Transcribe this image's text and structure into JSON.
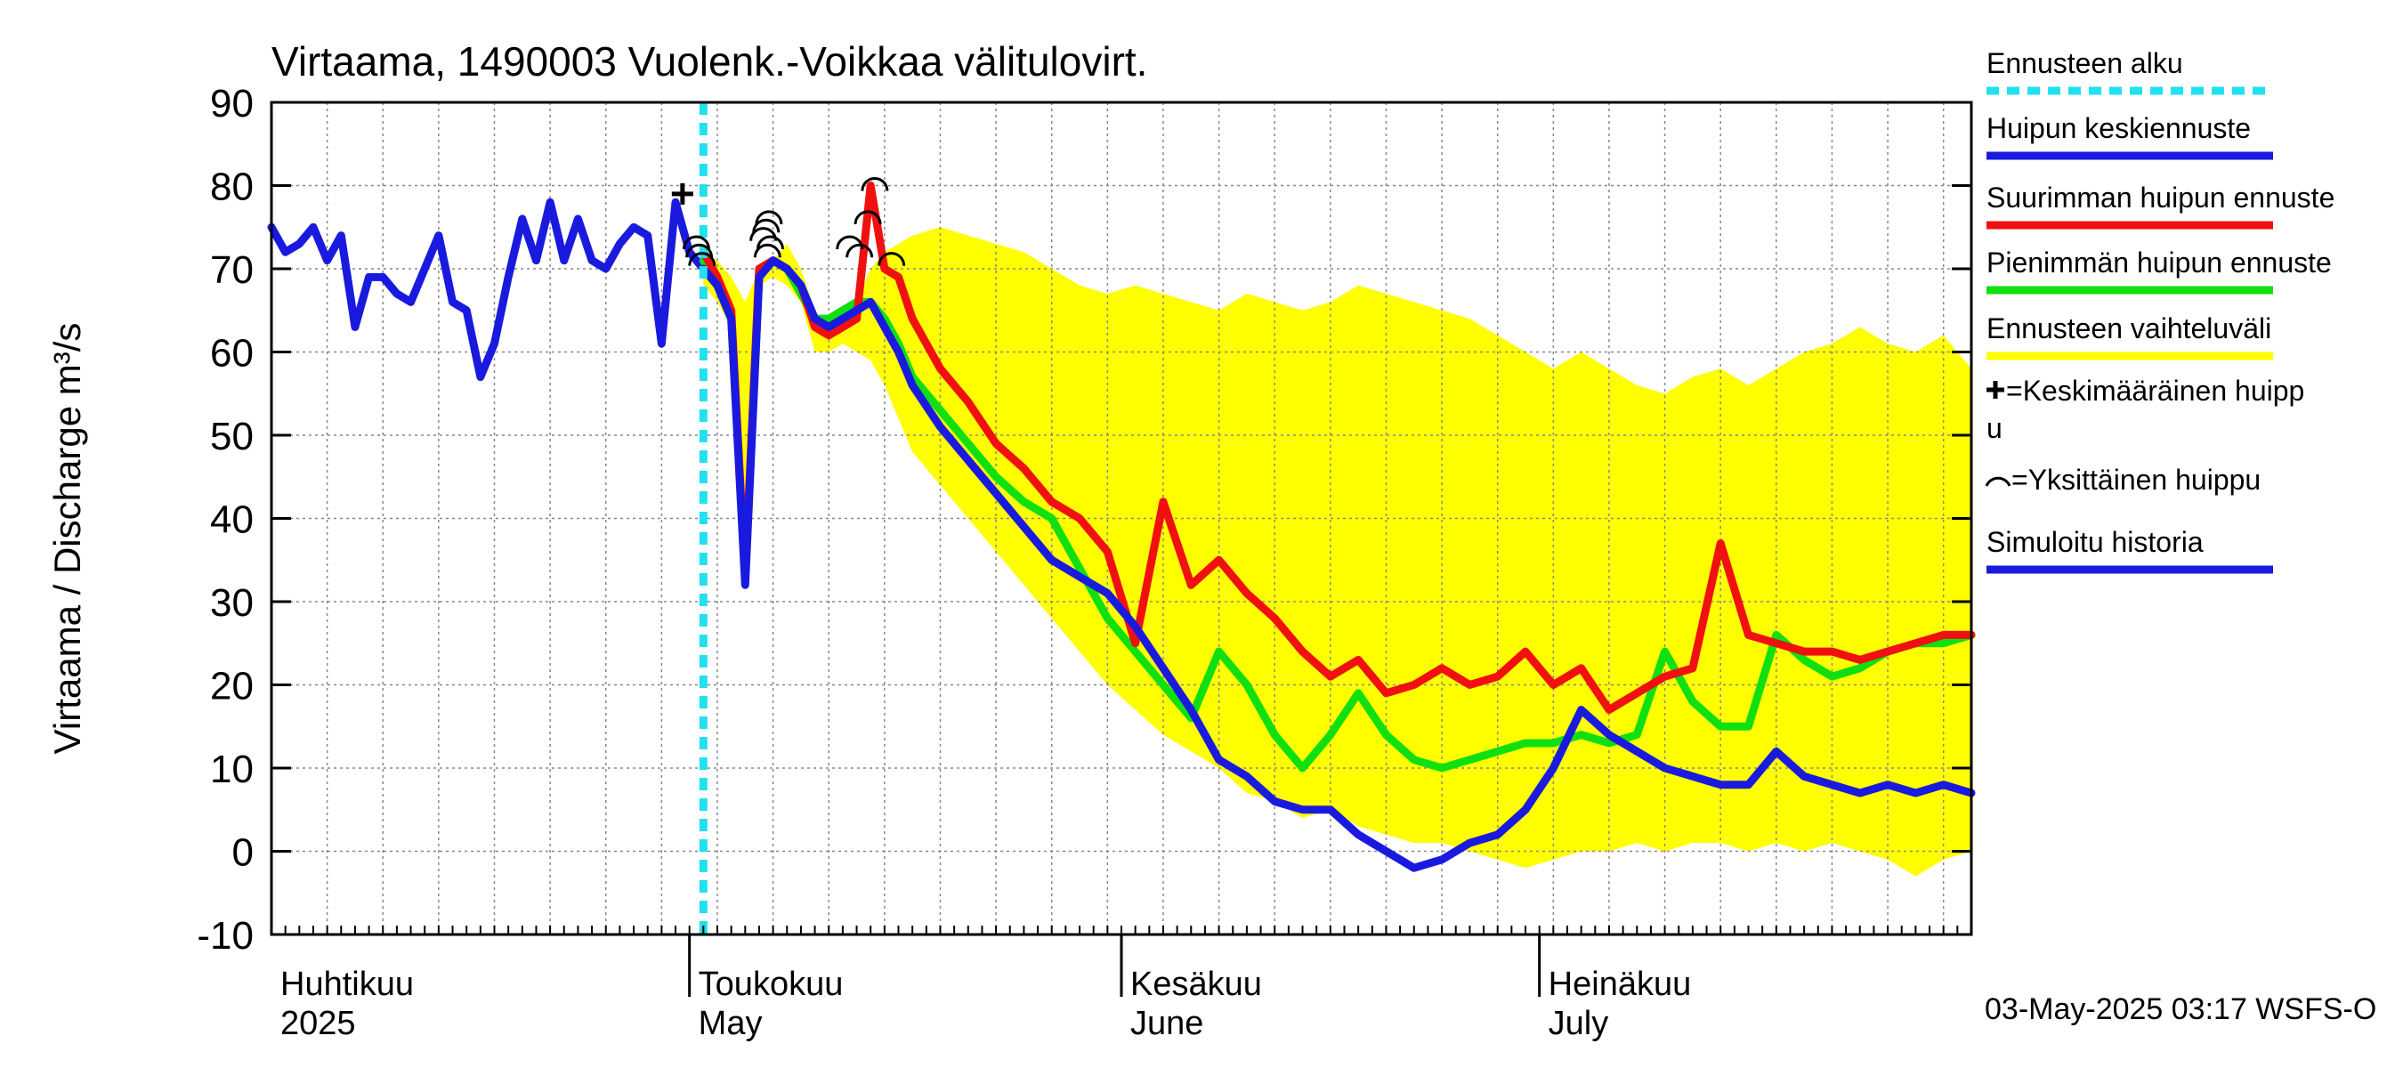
{
  "chart_data": {
    "type": "line",
    "title": "Virtaama, 1490003 Vuolenk.-Voikkaa välitulovirt.",
    "ylabel": "Virtaama / Discharge   m³/s",
    "ylim": [
      -10,
      90
    ],
    "yticks": [
      -10,
      0,
      10,
      20,
      30,
      40,
      50,
      60,
      70,
      80,
      90
    ],
    "x_axis": {
      "range_days": [
        0,
        122
      ],
      "forecast_start_day": 31,
      "month_labels": [
        {
          "fi": "Huhtikuu",
          "en": "2025",
          "day": 0
        },
        {
          "fi": "Toukokuu",
          "en": "May",
          "day": 30
        },
        {
          "fi": "Kesäkuu",
          "en": "June",
          "day": 61
        },
        {
          "fi": "Heinäkuu",
          "en": "July",
          "day": 91
        }
      ],
      "month_boundaries": [
        30,
        61,
        91
      ]
    },
    "colors": {
      "forecast_start": "#22e0f0",
      "mean": "#1a1adf",
      "max": "#f01010",
      "min": "#10e010",
      "band": "#ffff00",
      "history": "#1a1adf",
      "grid": "#888888"
    },
    "series": [
      {
        "name": "Ennusteen vaihteluväli",
        "kind": "band",
        "days": [
          31,
          32,
          33,
          34,
          35,
          36,
          37,
          38,
          39,
          40,
          41,
          42,
          43,
          44,
          45,
          46,
          48,
          50,
          52,
          54,
          56,
          58,
          60,
          62,
          64,
          66,
          68,
          70,
          72,
          74,
          76,
          78,
          80,
          82,
          84,
          86,
          88,
          90,
          92,
          94,
          96,
          98,
          100,
          102,
          104,
          106,
          108,
          110,
          112,
          114,
          116,
          118,
          120,
          122
        ],
        "upper": [
          72,
          71,
          69,
          66,
          70,
          71,
          73,
          70,
          65,
          63,
          64,
          66,
          70,
          72,
          73,
          74,
          75,
          74,
          73,
          72,
          70,
          68,
          67,
          68,
          67,
          66,
          65,
          67,
          66,
          65,
          66,
          68,
          67,
          66,
          65,
          64,
          62,
          60,
          58,
          60,
          58,
          56,
          55,
          57,
          58,
          56,
          58,
          60,
          61,
          63,
          61,
          60,
          62,
          58
        ],
        "lower": [
          68,
          66,
          63,
          35,
          68,
          69,
          68,
          66,
          60,
          60,
          61,
          60,
          59,
          56,
          52,
          48,
          44,
          40,
          36,
          32,
          28,
          24,
          20,
          17,
          14,
          12,
          10,
          7,
          6,
          4,
          5,
          3,
          2,
          1,
          1,
          0,
          -1,
          -2,
          -1,
          0,
          0,
          1,
          0,
          1,
          1,
          0,
          1,
          0,
          1,
          0,
          -1,
          -3,
          -1,
          0
        ]
      },
      {
        "name": "Simuloitu historia",
        "days": [
          0,
          1,
          2,
          3,
          4,
          5,
          6,
          7,
          8,
          9,
          10,
          11,
          12,
          13,
          14,
          15,
          16,
          17,
          18,
          19,
          20,
          21,
          22,
          23,
          24,
          25,
          26,
          27,
          28,
          29,
          30,
          31
        ],
        "values": [
          75,
          72,
          73,
          75,
          71,
          74,
          63,
          69,
          69,
          67,
          66,
          70,
          74,
          66,
          65,
          57,
          61,
          69,
          76,
          71,
          78,
          71,
          76,
          71,
          70,
          73,
          75,
          74,
          61,
          78,
          72,
          70
        ]
      },
      {
        "name": "Huipun keskiennuste",
        "days": [
          31,
          32,
          33,
          34,
          35,
          36,
          37,
          38,
          39,
          40,
          41,
          42,
          43,
          44,
          45,
          46,
          48,
          50,
          52,
          54,
          56,
          58,
          60,
          62,
          64,
          66,
          68,
          70,
          72,
          74,
          76,
          78,
          80,
          82,
          84,
          86,
          88,
          90,
          92,
          94,
          96,
          98,
          100,
          102,
          104,
          106,
          108,
          110,
          112,
          114,
          116,
          118,
          120,
          122
        ],
        "values": [
          70,
          68,
          64,
          32,
          69,
          71,
          70,
          68,
          64,
          63,
          64,
          65,
          66,
          63,
          60,
          56,
          51,
          47,
          43,
          39,
          35,
          33,
          31,
          27,
          22,
          17,
          11,
          9,
          6,
          5,
          5,
          2,
          0,
          -2,
          -1,
          1,
          2,
          5,
          10,
          17,
          14,
          12,
          10,
          9,
          8,
          8,
          12,
          9,
          8,
          7,
          8,
          7,
          8,
          7
        ]
      },
      {
        "name": "Suurimman huipun ennuste",
        "days": [
          31,
          32,
          33,
          34,
          35,
          36,
          37,
          38,
          39,
          40,
          41,
          42,
          43,
          44,
          45,
          46,
          48,
          50,
          52,
          54,
          56,
          58,
          60,
          62,
          64,
          66,
          68,
          70,
          72,
          74,
          76,
          78,
          80,
          82,
          84,
          86,
          88,
          90,
          92,
          94,
          96,
          98,
          100,
          102,
          104,
          106,
          108,
          110,
          112,
          114,
          116,
          118,
          120,
          122
        ],
        "values": [
          72,
          69,
          65,
          33,
          70,
          71,
          70,
          68,
          63,
          62,
          63,
          64,
          80,
          70,
          69,
          64,
          58,
          54,
          49,
          46,
          42,
          40,
          36,
          25,
          42,
          32,
          35,
          31,
          28,
          24,
          21,
          23,
          19,
          20,
          22,
          20,
          21,
          24,
          20,
          22,
          17,
          19,
          21,
          22,
          37,
          26,
          25,
          24,
          24,
          23,
          24,
          25,
          26,
          26
        ]
      },
      {
        "name": "Pienimmän huipun ennuste",
        "days": [
          31,
          32,
          33,
          34,
          35,
          36,
          37,
          38,
          39,
          40,
          41,
          42,
          43,
          44,
          45,
          46,
          48,
          50,
          52,
          54,
          56,
          58,
          60,
          62,
          64,
          66,
          68,
          70,
          72,
          74,
          76,
          78,
          80,
          82,
          84,
          86,
          88,
          90,
          92,
          94,
          96,
          98,
          100,
          102,
          104,
          106,
          108,
          110,
          112,
          114,
          116,
          118,
          120,
          122
        ],
        "values": [
          71,
          68,
          64,
          33,
          69,
          71,
          70,
          67,
          64,
          64,
          65,
          66,
          66,
          64,
          61,
          57,
          53,
          49,
          45,
          42,
          40,
          34,
          28,
          24,
          20,
          16,
          24,
          20,
          14,
          10,
          14,
          19,
          14,
          11,
          10,
          11,
          12,
          13,
          13,
          14,
          13,
          14,
          24,
          18,
          15,
          15,
          26,
          23,
          21,
          22,
          24,
          25,
          25,
          26
        ]
      }
    ],
    "peaks_mean": [
      {
        "day": 29.5,
        "value": 79
      }
    ],
    "peaks_single": [
      {
        "day": 30.5,
        "value": 73
      },
      {
        "day": 30.7,
        "value": 72
      },
      {
        "day": 30.9,
        "value": 71
      },
      {
        "day": 35.5,
        "value": 75
      },
      {
        "day": 35.7,
        "value": 76
      },
      {
        "day": 35.3,
        "value": 74
      },
      {
        "day": 35.8,
        "value": 73
      },
      {
        "day": 35.6,
        "value": 72
      },
      {
        "day": 41.5,
        "value": 73
      },
      {
        "day": 42.2,
        "value": 72
      },
      {
        "day": 42.8,
        "value": 76
      },
      {
        "day": 43.3,
        "value": 80
      },
      {
        "day": 44.5,
        "value": 71
      }
    ],
    "legend": [
      {
        "key": "forecast_start",
        "label": "Ennusteen alku",
        "style": "dashed"
      },
      {
        "key": "mean",
        "label": "Huipun keskiennuste",
        "style": "line"
      },
      {
        "key": "max",
        "label": "Suurimman huipun ennuste",
        "style": "line"
      },
      {
        "key": "min",
        "label": "Pienimmän huipun ennuste",
        "style": "line"
      },
      {
        "key": "band",
        "label": "Ennusteen vaihteluväli",
        "style": "line"
      },
      {
        "key": "mean_peak",
        "label_line1": "=Keskimääräinen huipp",
        "label_line2": "u",
        "style": "plus"
      },
      {
        "key": "single_peak",
        "label": "=Yksittäinen huippu",
        "style": "arc"
      },
      {
        "key": "history",
        "label": "Simuloitu historia",
        "style": "line"
      }
    ],
    "footer": "03-May-2025 03:17 WSFS-O"
  }
}
